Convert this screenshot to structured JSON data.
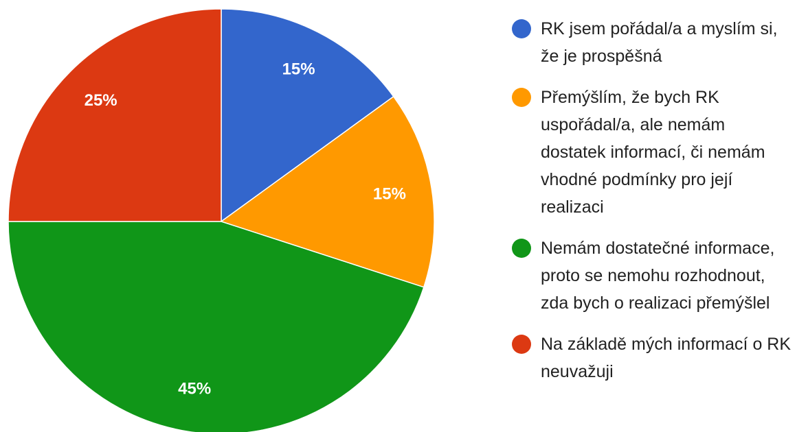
{
  "chart_data": {
    "type": "pie",
    "categories": [
      "RK jsem pořádal/a a myslím si, že je prospěšná",
      "Přemýšlím, že bych RK uspořádal/a, ale nemám dostatek informací, či nemám vhodné podmínky pro její realizaci",
      "Nemám dostatečné informace, proto se nemohu rozhodnout, zda bych o realizaci přemýšlel",
      "Na základě mých informací o RK neuvažuji"
    ],
    "values": [
      15,
      15,
      45,
      25
    ],
    "value_labels": [
      "15%",
      "15%",
      "45%",
      "25%"
    ],
    "colors": [
      "#3366cc",
      "#ff9900",
      "#109618",
      "#dc3912"
    ],
    "legend": "right"
  }
}
